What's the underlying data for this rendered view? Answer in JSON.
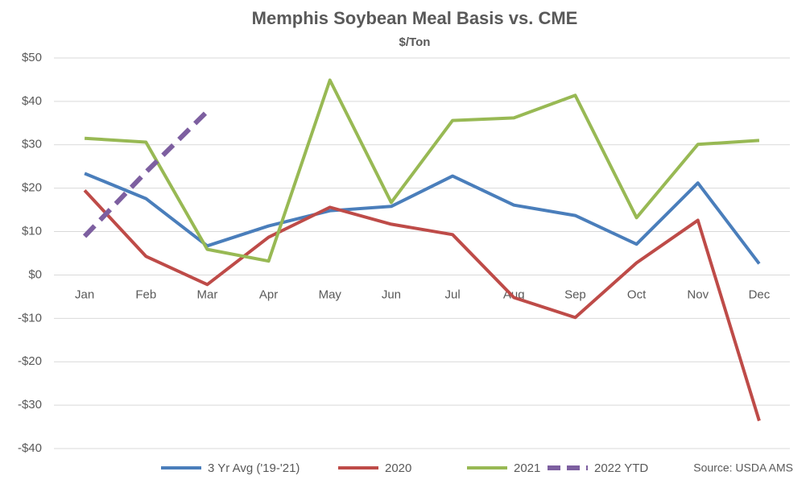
{
  "chart_data": {
    "type": "line",
    "title": "Memphis Soybean Meal Basis vs. CME",
    "subtitle": "$/Ton",
    "source": "Source: USDA AMS",
    "categories": [
      "Jan",
      "Feb",
      "Mar",
      "Apr",
      "May",
      "Jun",
      "Jul",
      "Aug",
      "Sep",
      "Oct",
      "Nov",
      "Dec"
    ],
    "series": [
      {
        "name": "3 Yr Avg ('19-'21)",
        "color": "#4a7ebb",
        "values": [
          23.4,
          17.6,
          6.7,
          11.3,
          14.8,
          15.8,
          22.8,
          16.1,
          13.7,
          7.1,
          21.2,
          2.6
        ]
      },
      {
        "name": "2020",
        "color": "#be4b48",
        "values": [
          19.5,
          4.3,
          -2.2,
          8.7,
          15.6,
          11.7,
          9.3,
          -5.2,
          -9.8,
          2.8,
          12.6,
          -33.6
        ]
      },
      {
        "name": "2021",
        "color": "#98b954",
        "values": [
          31.5,
          30.6,
          5.9,
          3.2,
          44.9,
          16.7,
          35.6,
          36.2,
          41.4,
          13.2,
          30.1,
          31.0
        ]
      },
      {
        "name": "2022 YTD",
        "color": "#7d5fa0",
        "dashed": true,
        "values": [
          8.9,
          23.7,
          37.7,
          null,
          null,
          null,
          null,
          null,
          null,
          null,
          null,
          null
        ]
      }
    ],
    "ylim": [
      -40,
      50
    ],
    "yticks": [
      {
        "value": -40,
        "label": "-$40"
      },
      {
        "value": -30,
        "label": "-$30"
      },
      {
        "value": -20,
        "label": "-$20"
      },
      {
        "value": -10,
        "label": "-$10"
      },
      {
        "value": 0,
        "label": "$0"
      },
      {
        "value": 10,
        "label": "$10"
      },
      {
        "value": 20,
        "label": "$20"
      },
      {
        "value": 30,
        "label": "$30"
      },
      {
        "value": 40,
        "label": "$40"
      },
      {
        "value": 50,
        "label": "$50"
      }
    ],
    "grid": true,
    "legend": "bottom"
  }
}
